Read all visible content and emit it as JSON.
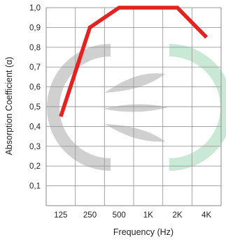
{
  "chart_data": {
    "type": "line",
    "title": "",
    "xlabel": "Frequency (Hz)",
    "ylabel": "Absorption Coefficient (α)",
    "categories": [
      "125",
      "250",
      "500",
      "1K",
      "2K",
      "4K"
    ],
    "yticks": [
      "0,1",
      "0,2",
      "0,3",
      "0,4",
      "0,5",
      "0,6",
      "0,7",
      "0,8",
      "0,9",
      "1,0"
    ],
    "ylim": [
      0,
      1.0
    ],
    "grid": true,
    "series": [
      {
        "color": "#e32222",
        "values": [
          0.45,
          0.9,
          1.0,
          1.0,
          1.0,
          0.85
        ]
      }
    ],
    "watermark": {
      "left_color": "#c8c8c8",
      "right_color": "#bfe5cf"
    }
  }
}
